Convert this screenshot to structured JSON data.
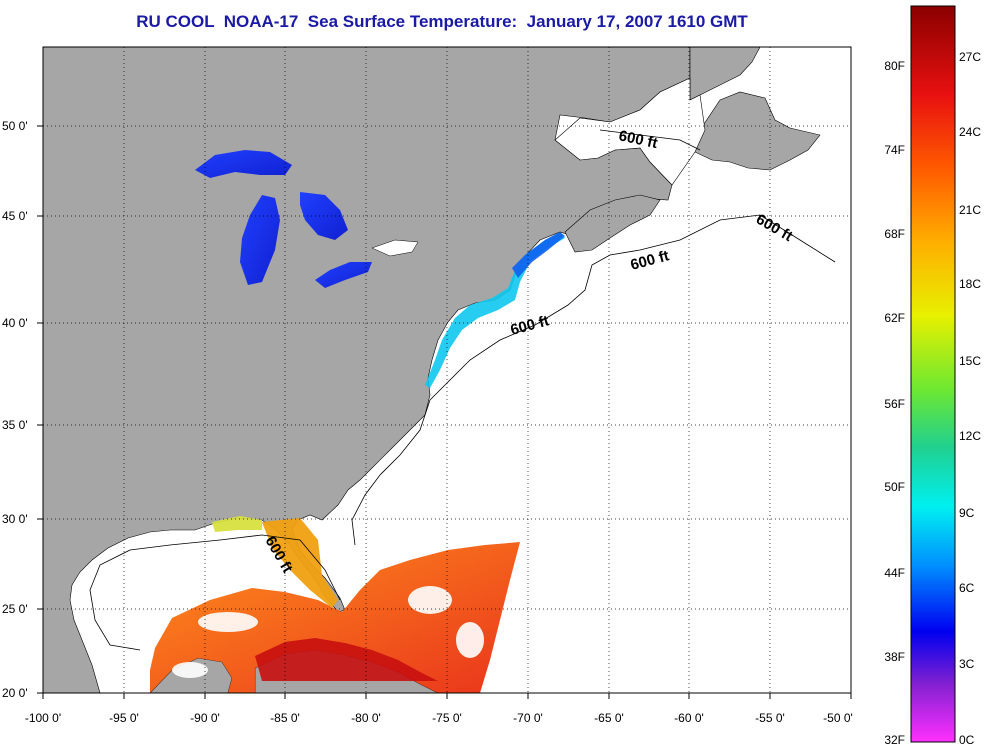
{
  "map": {
    "title": "RU COOL  NOAA-17  Sea Surface Temperature:  January 17, 2007 1610 GMT",
    "lon_labels": [
      "-100 0'",
      "-95 0'",
      "-90 0'",
      "-85 0'",
      "-80 0'",
      "-75 0'",
      "-70 0'",
      "-65 0'",
      "-60 0'",
      "-55 0'",
      "-50 0'"
    ],
    "lat_labels": [
      "50 0'",
      "45 0'",
      "40 0'",
      "35 0'",
      "30 0'",
      "25 0'",
      "20 0'"
    ],
    "isobath_labels": [
      "600 ft",
      "600 ft",
      "600 ft",
      "600 ft",
      "600 ft"
    ]
  },
  "colorbar": {
    "fahrenheit_labels": [
      "80F",
      "74F",
      "68F",
      "62F",
      "56F",
      "50F",
      "44F",
      "38F",
      "32F"
    ],
    "celsius_labels": [
      "27C",
      "24C",
      "21C",
      "18C",
      "15C",
      "12C",
      "9C",
      "6C",
      "3C",
      "0C"
    ]
  },
  "colors": {
    "land": "#a6a6a6",
    "ocean": "#ffffff",
    "title": "#1a1aa6"
  }
}
